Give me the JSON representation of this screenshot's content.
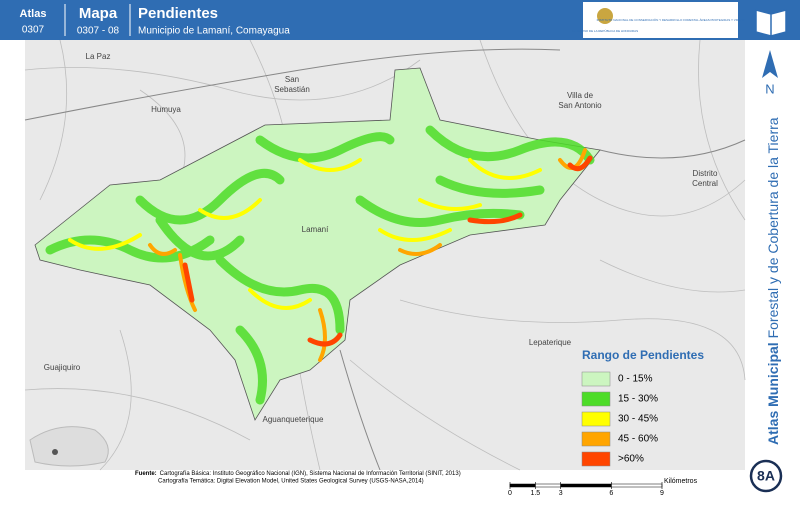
{
  "header": {
    "atlas_label": "Atlas",
    "atlas_code": "0307",
    "map_label": "Mapa",
    "map_code": "0307 - 08",
    "title": "Pendientes",
    "subtitle": "Municipio de Lamaní, Comayagua",
    "logo_left": "GOBIERNO DE LA REPÚBLICA DE HONDURAS",
    "logo_right": "INSTITUTO NACIONAL DE CONSERVACIÓN Y DESARROLLO FORESTAL ÁREAS PROTEGIDAS Y VIDA SILVESTRE ICF"
  },
  "places": [
    "La Paz",
    "San Sebastián",
    "Humuya",
    "Villa de San Antonio",
    "Distrito Central",
    "Lamaní",
    "Lepaterique",
    "Guajiquiro",
    "Aguanqueterique"
  ],
  "legend": {
    "title": "Rango de Pendientes",
    "items": [
      {
        "label": "0 - 15%",
        "color": "#ccf5c0"
      },
      {
        "label": "15 - 30%",
        "color": "#4ddc28"
      },
      {
        "label": "30 - 45%",
        "color": "#ffff00"
      },
      {
        "label": "45 - 60%",
        "color": "#ffa500"
      },
      {
        "label": ">60%",
        "color": "#ff4500"
      }
    ]
  },
  "source": {
    "heading": "Fuente:",
    "line1": "Cartografía Básica: Instituto Geográfico Nacional (IGN), Sistema Nacional de Información Territorial (SINIT, 2013)",
    "line2": "Cartografía Temática: Digital Elevation Model, United States Geological Survey (USGS-NASA,2014)"
  },
  "scale": {
    "unit": "Kilómetros",
    "ticks": [
      0,
      1.5,
      3,
      6,
      9
    ]
  },
  "side": {
    "north": "N",
    "title_bold": "Atlas Municipal",
    "title_rest": " Forestal y de Cobertura de la Tierra",
    "badge": "8A"
  }
}
